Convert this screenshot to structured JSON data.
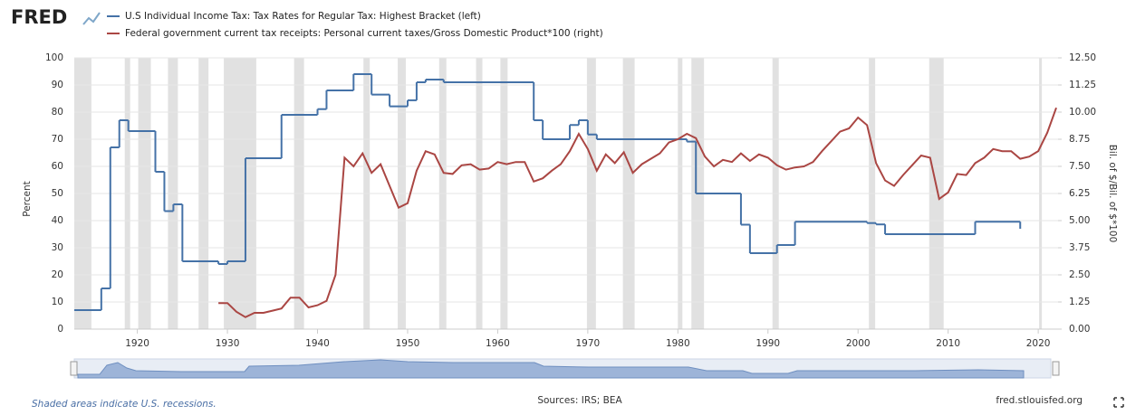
{
  "brand": "FRED",
  "chart_data": {
    "type": "line",
    "series": [
      {
        "name": "U.S Individual Income Tax: Tax Rates for Regular Tax: Highest Bracket (left)",
        "color": "#4572a7",
        "step": true,
        "axis": "y",
        "x": [
          1913,
          1916,
          1917,
          1918,
          1919,
          1922,
          1923,
          1924,
          1925,
          1929,
          1930,
          1932,
          1936,
          1940,
          1941,
          1944,
          1946,
          1948,
          1950,
          1951,
          1952,
          1954,
          1964,
          1965,
          1968,
          1969,
          1970,
          1971,
          1981,
          1982,
          1987,
          1988,
          1991,
          1993,
          2001,
          2002,
          2003,
          2013,
          2018
        ],
        "values": [
          7,
          15,
          67,
          77,
          73,
          58,
          43.5,
          46,
          25,
          24,
          25,
          63,
          79,
          81.1,
          88,
          94,
          86.45,
          82.13,
          84.36,
          91,
          92,
          91,
          77,
          70,
          75.25,
          77,
          71.75,
          70,
          69.13,
          50,
          38.5,
          28,
          31,
          39.6,
          39.1,
          38.6,
          35,
          39.6,
          37
        ]
      },
      {
        "name": "Federal government current tax receipts: Personal current taxes/Gross Domestic Product*100 (right)",
        "color": "#aa4643",
        "axis": "y2",
        "x": [
          1929,
          1930,
          1931,
          1932,
          1933,
          1934,
          1935,
          1936,
          1937,
          1938,
          1939,
          1940,
          1941,
          1942,
          1943,
          1944,
          1945,
          1946,
          1947,
          1948,
          1949,
          1950,
          1951,
          1952,
          1953,
          1954,
          1955,
          1956,
          1957,
          1958,
          1959,
          1960,
          1961,
          1962,
          1963,
          1964,
          1965,
          1966,
          1967,
          1968,
          1969,
          1970,
          1971,
          1972,
          1973,
          1974,
          1975,
          1976,
          1977,
          1978,
          1979,
          1980,
          1981,
          1982,
          1983,
          1984,
          1985,
          1986,
          1987,
          1988,
          1989,
          1990,
          1991,
          1992,
          1993,
          1994,
          1995,
          1996,
          1997,
          1998,
          1999,
          2000,
          2001,
          2002,
          2003,
          2004,
          2005,
          2006,
          2007,
          2008,
          2009,
          2010,
          2011,
          2012,
          2013,
          2014,
          2015,
          2016,
          2017,
          2018,
          2019,
          2020,
          2021,
          2022
        ],
        "values": [
          1.2,
          1.2,
          0.8,
          0.55,
          0.75,
          0.75,
          0.85,
          0.95,
          1.45,
          1.45,
          1.0,
          1.1,
          1.3,
          2.5,
          7.9,
          7.5,
          8.1,
          7.2,
          7.6,
          6.6,
          5.6,
          5.8,
          7.3,
          8.2,
          8.05,
          7.2,
          7.15,
          7.55,
          7.6,
          7.35,
          7.4,
          7.7,
          7.6,
          7.7,
          7.7,
          6.8,
          6.95,
          7.3,
          7.6,
          8.2,
          9.0,
          8.3,
          7.3,
          8.05,
          7.65,
          8.15,
          7.2,
          7.6,
          7.85,
          8.1,
          8.6,
          8.75,
          9.0,
          8.8,
          7.95,
          7.5,
          7.8,
          7.7,
          8.1,
          7.75,
          8.05,
          7.9,
          7.55,
          7.35,
          7.45,
          7.5,
          7.7,
          8.2,
          8.65,
          9.1,
          9.25,
          9.75,
          9.4,
          7.65,
          6.85,
          6.6,
          7.1,
          7.55,
          8.0,
          7.9,
          6.0,
          6.3,
          7.15,
          7.1,
          7.65,
          7.9,
          8.3,
          8.2,
          8.2,
          7.85,
          7.95,
          8.2,
          9.05,
          10.2
        ]
      }
    ],
    "y_label": "Percent",
    "y2_label": "Bil. of $/Bil. of $*100",
    "xlim": [
      1913,
      2022.2
    ],
    "xticks": [
      1920,
      1930,
      1940,
      1950,
      1960,
      1970,
      1980,
      1990,
      2000,
      2010,
      2020
    ],
    "ylim": [
      0,
      100
    ],
    "yticks": [
      0,
      10,
      20,
      30,
      40,
      50,
      60,
      70,
      80,
      90,
      100
    ],
    "y2lim": [
      0,
      12.5
    ],
    "y2ticks": [
      {
        "value": 0,
        "label": "0.00"
      },
      1.25,
      {
        "value": 2.5,
        "label": "2.50"
      },
      3.75,
      {
        "value": 5,
        "label": "5.00"
      },
      6.25,
      {
        "value": 7.5,
        "label": "7.50"
      },
      8.75,
      {
        "value": 10,
        "label": "10.00"
      },
      11.25,
      {
        "value": 12.5,
        "label": "12.50"
      }
    ],
    "grid": true,
    "recessions": [
      [
        1913,
        1914.9
      ],
      [
        1918.6,
        1919.2
      ],
      [
        1920.1,
        1921.5
      ],
      [
        1923.4,
        1924.5
      ],
      [
        1926.8,
        1927.9
      ],
      [
        1929.6,
        1933.2
      ],
      [
        1937.4,
        1938.5
      ],
      [
        1945.1,
        1945.8
      ],
      [
        1948.9,
        1949.8
      ],
      [
        1953.5,
        1954.3
      ],
      [
        1957.6,
        1958.3
      ],
      [
        1960.3,
        1961.1
      ],
      [
        1969.9,
        1970.9
      ],
      [
        1973.9,
        1975.2
      ],
      [
        1980.0,
        1980.5
      ],
      [
        1981.5,
        1982.9
      ],
      [
        1990.5,
        1991.2
      ],
      [
        2001.2,
        2001.9
      ],
      [
        2007.9,
        2009.5
      ],
      [
        2020.1,
        2020.4
      ]
    ],
    "recession_note": "Shaded areas indicate U.S. recessions.",
    "sources": "Sources: IRS; BEA",
    "site": "fred.stlouisfed.org"
  }
}
